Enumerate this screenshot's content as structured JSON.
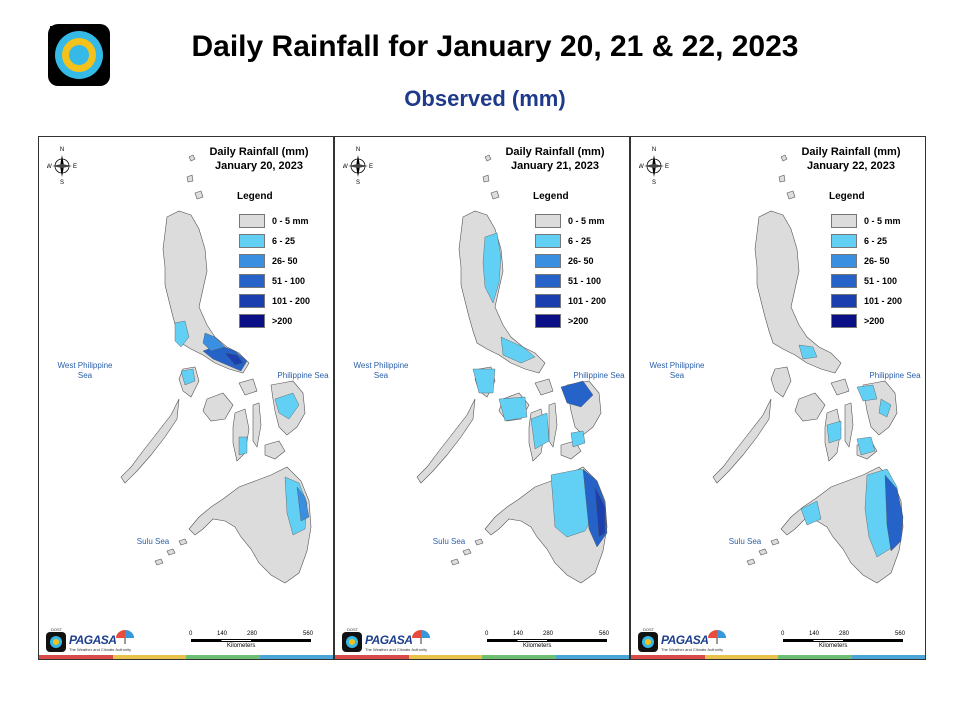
{
  "header": {
    "title": "Daily Rainfall for January 20, 21 & 22, 2023",
    "subtitle": "Observed (mm)"
  },
  "legend": {
    "title": "Legend",
    "items": [
      {
        "label": "0 - 5 mm",
        "color": "#dcdcdc"
      },
      {
        "label": "6 - 25",
        "color": "#62d0f5"
      },
      {
        "label": "26- 50",
        "color": "#3a8fe0"
      },
      {
        "label": "51 - 100",
        "color": "#2563c9"
      },
      {
        "label": "101 - 200",
        "color": "#1b3fae"
      },
      {
        "label": ">200",
        "color": "#0b0f85"
      }
    ]
  },
  "seas": {
    "west": "West Philippine Sea",
    "phil": "Philippine Sea",
    "sulu": "Sulu Sea"
  },
  "compass": {
    "n": "N",
    "s": "S",
    "e": "E",
    "w": "W"
  },
  "scale": {
    "ticks": [
      "0",
      "140",
      "280",
      "560"
    ],
    "unit": "Kilometers"
  },
  "brand": {
    "name": "PAGASA",
    "dost": "DOST",
    "tagline": "The Weather and Climate Authority"
  },
  "panels": [
    {
      "heading": "Daily Rainfall (mm)",
      "date": "January 20, 2023"
    },
    {
      "heading": "Daily Rainfall (mm)",
      "date": "January 21, 2023"
    },
    {
      "heading": "Daily Rainfall (mm)",
      "date": "January 22, 2023"
    }
  ],
  "stripe_colors": [
    "#d94b4b",
    "#e8c24a",
    "#6fbf73",
    "#4aa6d9"
  ]
}
